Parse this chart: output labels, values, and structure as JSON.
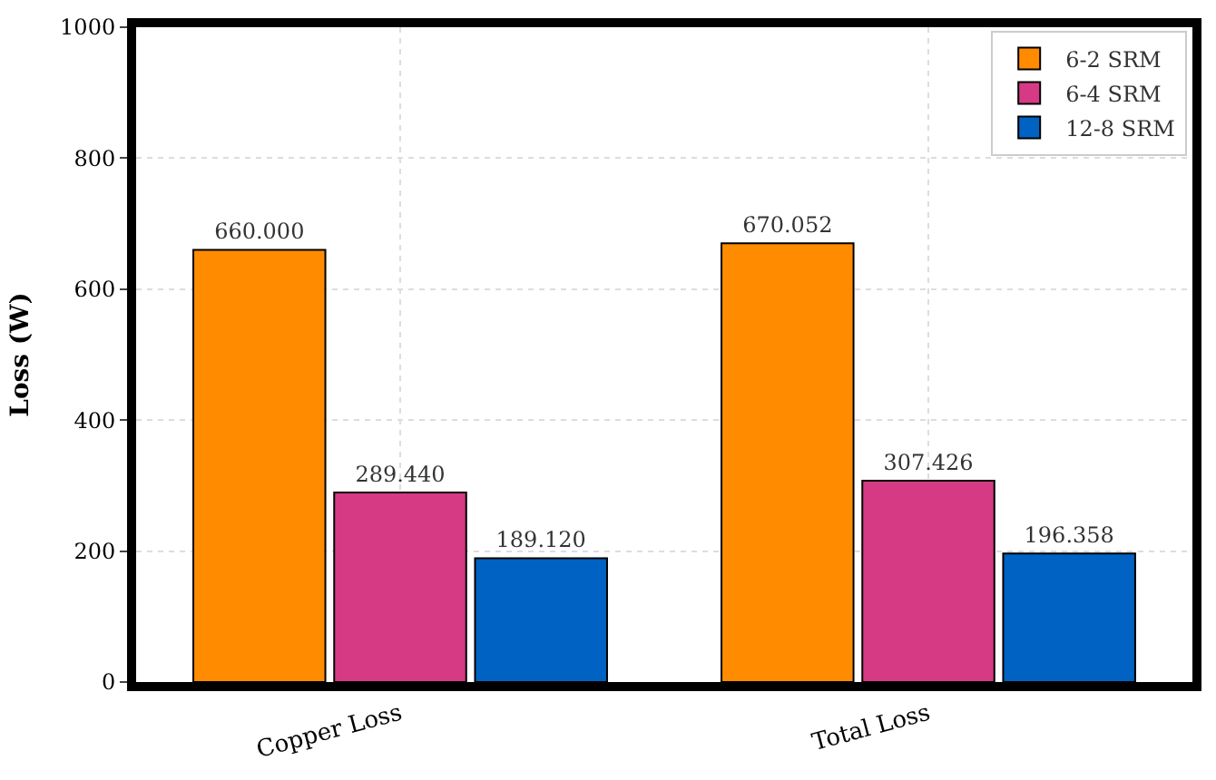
{
  "chart_data": {
    "type": "bar",
    "ylabel": "Loss (W)",
    "categories": [
      "Copper Loss",
      "Total Loss"
    ],
    "series": [
      {
        "name": "6-2 SRM",
        "color": "#ff8c00",
        "values": [
          660.0,
          670.052
        ],
        "value_labels": [
          "660.000",
          "670.052"
        ]
      },
      {
        "name": "6-4 SRM",
        "color": "#d63a84",
        "values": [
          289.44,
          307.426
        ],
        "value_labels": [
          "289.440",
          "307.426"
        ]
      },
      {
        "name": "12-8 SRM",
        "color": "#0062c2",
        "values": [
          189.12,
          196.358
        ],
        "value_labels": [
          "189.120",
          "196.358"
        ]
      }
    ],
    "ylim": [
      0,
      1000
    ],
    "yticks": [
      0,
      200,
      400,
      600,
      800,
      1000
    ],
    "grid": true,
    "legend": "top right"
  }
}
